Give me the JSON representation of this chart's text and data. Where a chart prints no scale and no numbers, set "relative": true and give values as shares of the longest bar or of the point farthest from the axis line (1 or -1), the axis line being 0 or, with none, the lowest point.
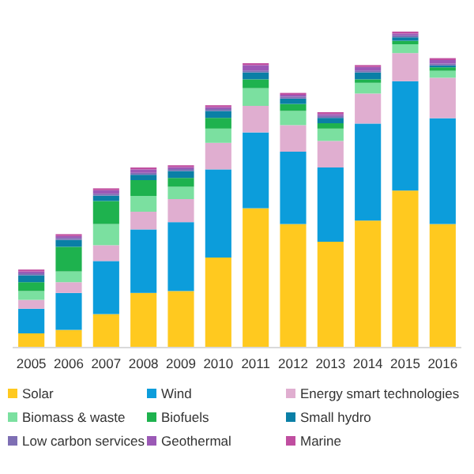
{
  "chart_data": {
    "type": "bar",
    "stacked": true,
    "relative": true,
    "legend": "bottom",
    "categories": [
      "2005",
      "2006",
      "2007",
      "2008",
      "2009",
      "2010",
      "2011",
      "2012",
      "2013",
      "2014",
      "2015",
      "2016"
    ],
    "series": [
      {
        "name": "Solar",
        "color": "#ffc91f",
        "values": [
          0.045,
          0.056,
          0.106,
          0.173,
          0.179,
          0.285,
          0.441,
          0.391,
          0.335,
          0.402,
          0.497,
          0.391
        ]
      },
      {
        "name": "Wind",
        "color": "#0c9ddb",
        "values": [
          0.078,
          0.117,
          0.168,
          0.201,
          0.218,
          0.279,
          0.24,
          0.229,
          0.235,
          0.307,
          0.346,
          0.335
        ]
      },
      {
        "name": "Energy smart technologies",
        "color": "#e0aed0",
        "values": [
          0.028,
          0.034,
          0.05,
          0.056,
          0.073,
          0.084,
          0.084,
          0.084,
          0.084,
          0.095,
          0.089,
          0.128
        ]
      },
      {
        "name": "Biomass & waste",
        "color": "#7be0a0",
        "values": [
          0.028,
          0.034,
          0.067,
          0.05,
          0.039,
          0.045,
          0.056,
          0.045,
          0.039,
          0.034,
          0.028,
          0.022
        ]
      },
      {
        "name": "Biofuels",
        "color": "#1eb24e",
        "values": [
          0.028,
          0.078,
          0.073,
          0.05,
          0.028,
          0.034,
          0.028,
          0.022,
          0.017,
          0.011,
          0.011,
          0.011
        ]
      },
      {
        "name": "Small hydro",
        "color": "#0a7fa6",
        "values": [
          0.022,
          0.022,
          0.017,
          0.017,
          0.022,
          0.022,
          0.022,
          0.017,
          0.017,
          0.022,
          0.011,
          0.006
        ]
      },
      {
        "name": "Low carbon services",
        "color": "#7e6fb4",
        "values": [
          0.006,
          0.006,
          0.006,
          0.006,
          0.006,
          0.006,
          0.006,
          0.006,
          0.006,
          0.006,
          0.006,
          0.006
        ]
      },
      {
        "name": "Geothermal",
        "color": "#9b59b6",
        "values": [
          0.006,
          0.006,
          0.011,
          0.011,
          0.006,
          0.006,
          0.017,
          0.006,
          0.006,
          0.011,
          0.006,
          0.011
        ]
      },
      {
        "name": "Marine",
        "color": "#c04ea0",
        "values": [
          0.006,
          0.006,
          0.006,
          0.006,
          0.006,
          0.006,
          0.006,
          0.006,
          0.006,
          0.006,
          0.006,
          0.006
        ]
      }
    ]
  }
}
